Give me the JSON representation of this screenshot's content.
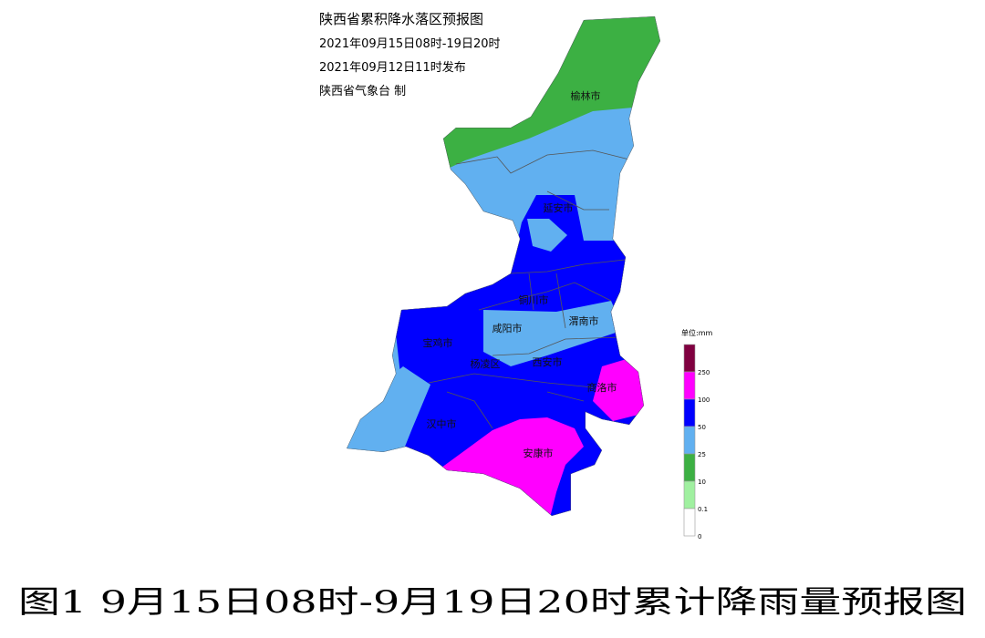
{
  "header": {
    "title": "陕西省累积降水落区预报图",
    "period": "2021年09月15日08时-19日20时",
    "issued": "2021年09月12日11时发布",
    "issuer": "陕西省气象台 制"
  },
  "cities": [
    "榆林市",
    "延安市",
    "铜川市",
    "咸阳市",
    "渭南市",
    "宝鸡市",
    "杨凌区",
    "西安市",
    "商洛市",
    "汉中市",
    "安康市"
  ],
  "legend": {
    "unit": "单位:mm",
    "colors": [
      "#800040",
      "#ff00ff",
      "#0000ff",
      "#61b0f0",
      "#3cb043",
      "#a0f0a0",
      "#ffffff"
    ],
    "ticks": [
      250,
      100,
      50,
      25,
      10,
      0.1,
      0
    ]
  },
  "caption": "图1  9月15日08时-9月19日20时累计降雨量预报图"
}
